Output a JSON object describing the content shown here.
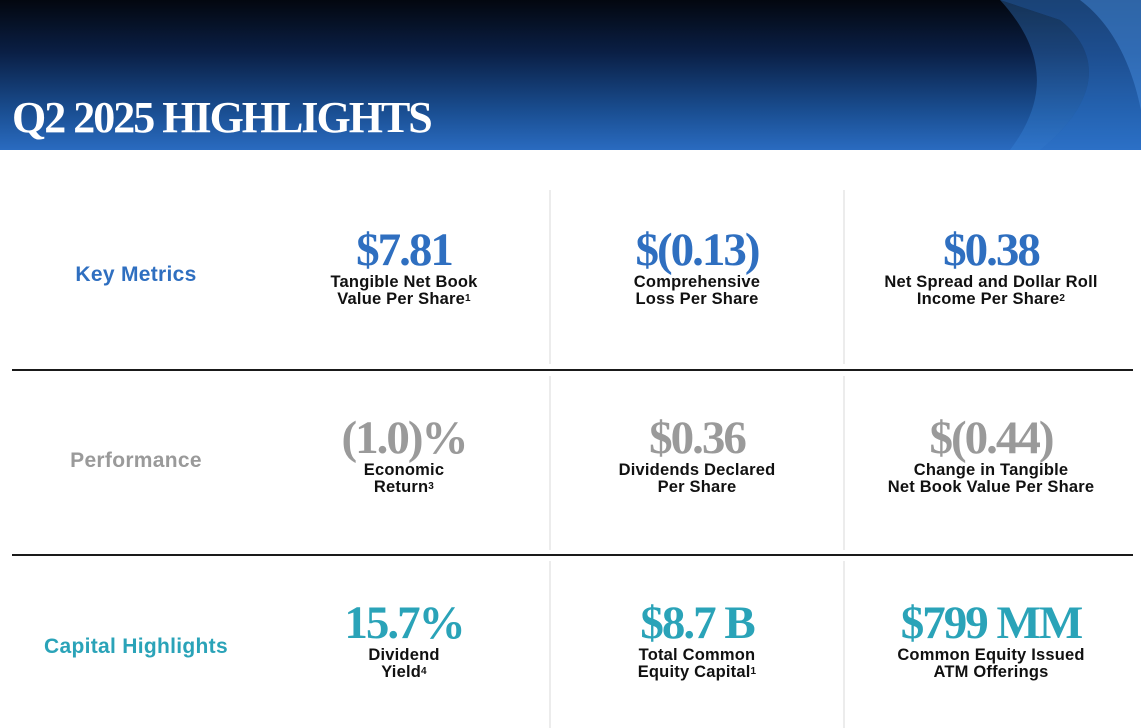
{
  "title": "Q2 2025 HIGHLIGHTS",
  "colors": {
    "key_metrics": "#2f6fc0",
    "performance": "#9a9a9a",
    "capital_highlights": "#2aa3b8"
  },
  "rows": [
    {
      "label": "Key Metrics",
      "cells": [
        {
          "value": "$7.81",
          "line1": "Tangible Net Book",
          "line2": "Value Per Share",
          "note": "1"
        },
        {
          "value": "$(0.13)",
          "line1": "Comprehensive",
          "line2": "Loss Per Share",
          "note": ""
        },
        {
          "value": "$0.38",
          "line1": "Net Spread and Dollar Roll",
          "line2": "Income Per Share",
          "note": "2"
        }
      ]
    },
    {
      "label": "Performance",
      "cells": [
        {
          "value": "(1.0)%",
          "line1": "Economic",
          "line2": "Return",
          "note": "3"
        },
        {
          "value": "$0.36",
          "line1": "Dividends Declared",
          "line2": "Per Share",
          "note": ""
        },
        {
          "value": "$(0.44)",
          "line1": "Change in Tangible",
          "line2": "Net Book Value Per Share",
          "note": ""
        }
      ]
    },
    {
      "label": "Capital Highlights",
      "cells": [
        {
          "value": "15.7%",
          "line1": "Dividend",
          "line2": "Yield",
          "note": "4"
        },
        {
          "value": "$8.7 B",
          "line1": "Total Common",
          "line2": "Equity Capital",
          "note": "1"
        },
        {
          "value": "$799 MM",
          "line1": "Common Equity Issued",
          "line2": "ATM Offerings",
          "note": ""
        }
      ]
    }
  ]
}
